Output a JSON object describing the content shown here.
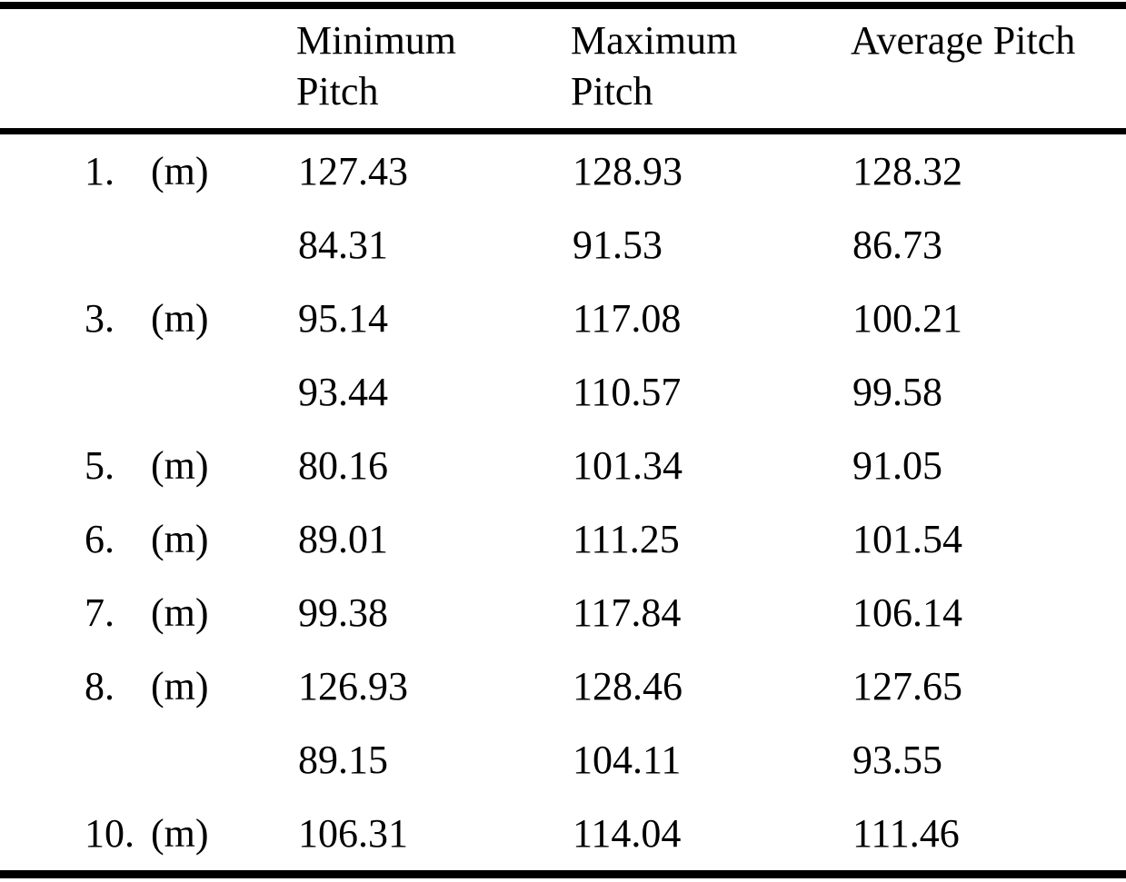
{
  "table": {
    "columns": [
      "Minimum\nPitch",
      "Maximum\nPitch",
      "Average Pitch"
    ],
    "rows": [
      {
        "no": "1.",
        "unit": "(m)",
        "min": "127.43",
        "max": "128.93",
        "avg": "128.32"
      },
      {
        "no": "",
        "unit": "",
        "min": "84.31",
        "max": "91.53",
        "avg": "86.73"
      },
      {
        "no": "3.",
        "unit": "(m)",
        "min": "95.14",
        "max": "117.08",
        "avg": "100.21"
      },
      {
        "no": "",
        "unit": "",
        "min": "93.44",
        "max": "110.57",
        "avg": "99.58"
      },
      {
        "no": "5.",
        "unit": "(m)",
        "min": "80.16",
        "max": "101.34",
        "avg": "91.05"
      },
      {
        "no": "6.",
        "unit": "(m)",
        "min": "89.01",
        "max": "111.25",
        "avg": "101.54"
      },
      {
        "no": "7.",
        "unit": "(m)",
        "min": "99.38",
        "max": "117.84",
        "avg": "106.14"
      },
      {
        "no": "8.",
        "unit": "(m)",
        "min": "126.93",
        "max": "128.46",
        "avg": "127.65"
      },
      {
        "no": "",
        "unit": "",
        "min": "89.15",
        "max": "104.11",
        "avg": "93.55"
      },
      {
        "no": "10.",
        "unit": "(m)",
        "min": "106.31",
        "max": "114.04",
        "avg": "111.46"
      }
    ]
  },
  "colors": {
    "background": "#ffffff",
    "text": "#000000",
    "rule": "#000000"
  }
}
